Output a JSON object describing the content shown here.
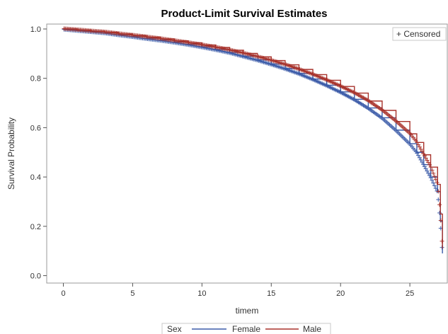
{
  "chart_data": {
    "type": "line",
    "title": "Product-Limit Survival Estimates",
    "xlabel": "timem",
    "ylabel": "Survival Probability",
    "xlim": [
      -1.2,
      27.7
    ],
    "ylim": [
      -0.03,
      1.02
    ],
    "x_ticks": [
      0,
      5,
      10,
      15,
      20,
      25
    ],
    "y_ticks": [
      0.0,
      0.2,
      0.4,
      0.6,
      0.8,
      1.0
    ],
    "x_tick_labels": [
      "0",
      "5",
      "10",
      "15",
      "20",
      "25"
    ],
    "y_tick_labels": [
      "0.0",
      "0.2",
      "0.4",
      "0.6",
      "0.8",
      "1.0"
    ],
    "grid": false,
    "inset_legend": {
      "position": "top-right",
      "label": "+ Censored"
    },
    "legend": {
      "position": "bottom",
      "title": "Sex"
    },
    "series": [
      {
        "name": "Female",
        "color": "#3b5ba8",
        "x": [
          0,
          1,
          2,
          3,
          4,
          5,
          6,
          7,
          8,
          9,
          10,
          11,
          12,
          13,
          14,
          15,
          16,
          17,
          18,
          19,
          20,
          21,
          22,
          23,
          24,
          25,
          25.5,
          26,
          26.5,
          27,
          27.2,
          27.35
        ],
        "y": [
          1.0,
          0.995,
          0.99,
          0.985,
          0.977,
          0.97,
          0.962,
          0.955,
          0.947,
          0.938,
          0.928,
          0.917,
          0.905,
          0.89,
          0.875,
          0.858,
          0.84,
          0.82,
          0.797,
          0.772,
          0.745,
          0.715,
          0.68,
          0.64,
          0.59,
          0.535,
          0.5,
          0.45,
          0.4,
          0.34,
          0.22,
          0.09
        ]
      },
      {
        "name": "Male",
        "color": "#a8322b",
        "x": [
          0,
          1,
          2,
          3,
          4,
          5,
          6,
          7,
          8,
          9,
          10,
          11,
          12,
          13,
          14,
          15,
          16,
          17,
          18,
          19,
          20,
          21,
          22,
          23,
          24,
          25,
          25.5,
          26,
          26.5,
          27,
          27.2,
          27.35
        ],
        "y": [
          1.0,
          0.996,
          0.991,
          0.987,
          0.98,
          0.974,
          0.967,
          0.96,
          0.952,
          0.944,
          0.935,
          0.925,
          0.914,
          0.901,
          0.887,
          0.872,
          0.855,
          0.836,
          0.815,
          0.792,
          0.767,
          0.74,
          0.708,
          0.67,
          0.625,
          0.575,
          0.54,
          0.49,
          0.44,
          0.37,
          0.25,
          0.11
        ]
      }
    ]
  }
}
